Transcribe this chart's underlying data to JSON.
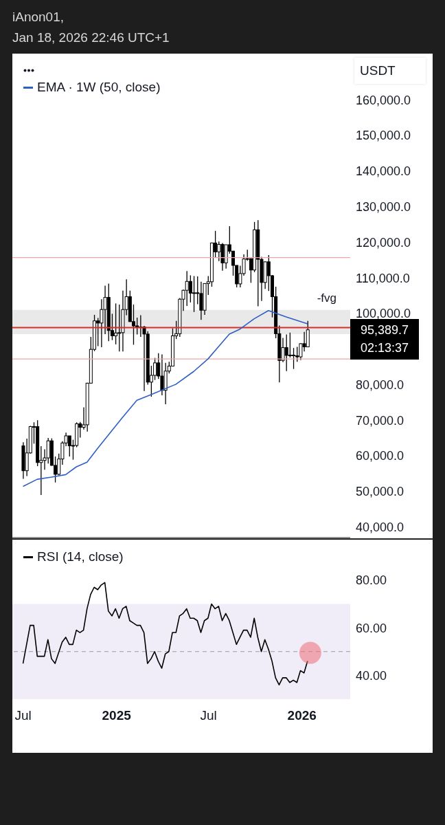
{
  "chart_data": [
    {
      "type": "candlestick",
      "title": "iAnon01,",
      "subtitle": "Jan 18, 2026 22:46 UTC+1",
      "ylabel": "USDT",
      "color": "#000000",
      "x": [
        "2024-07-01",
        "2024-07-08",
        "2024-07-15",
        "2024-07-22",
        "2024-07-29",
        "2024-08-05",
        "2024-08-12",
        "2024-08-19",
        "2024-08-26",
        "2024-09-02",
        "2024-09-09",
        "2024-09-16",
        "2024-09-23",
        "2024-09-30",
        "2024-10-07",
        "2024-10-14",
        "2024-10-21",
        "2024-10-28",
        "2024-11-04",
        "2024-11-11",
        "2024-11-18",
        "2024-11-25",
        "2024-12-02",
        "2024-12-09",
        "2024-12-16",
        "2024-12-23",
        "2024-12-30",
        "2025-01-06",
        "2025-01-13",
        "2025-01-20",
        "2025-01-27",
        "2025-02-03",
        "2025-02-10",
        "2025-02-17",
        "2025-02-24",
        "2025-03-03",
        "2025-03-10",
        "2025-03-17",
        "2025-03-24",
        "2025-03-31",
        "2025-04-07",
        "2025-04-14",
        "2025-04-21",
        "2025-04-28",
        "2025-05-05",
        "2025-05-12",
        "2025-05-19",
        "2025-05-26",
        "2025-06-02",
        "2025-06-09",
        "2025-06-16",
        "2025-06-23",
        "2025-06-30",
        "2025-07-07",
        "2025-07-14",
        "2025-07-21",
        "2025-07-28",
        "2025-08-04",
        "2025-08-11",
        "2025-08-18",
        "2025-08-25",
        "2025-09-01",
        "2025-09-08",
        "2025-09-15",
        "2025-09-22",
        "2025-09-29",
        "2025-10-06",
        "2025-10-13",
        "2025-10-20",
        "2025-10-27",
        "2025-11-03",
        "2025-11-10",
        "2025-11-17",
        "2025-11-24",
        "2025-12-01",
        "2025-12-08",
        "2025-12-15",
        "2025-12-22",
        "2025-12-29",
        "2026-01-05",
        "2026-01-12"
      ],
      "ohlc": [
        [
          62800,
          63800,
          53500,
          55800
        ],
        [
          55800,
          64800,
          54300,
          60800
        ],
        [
          60800,
          68400,
          60600,
          68200
        ],
        [
          68200,
          69400,
          63400,
          68200
        ],
        [
          68200,
          70000,
          57100,
          58100
        ],
        [
          58100,
          62700,
          49000,
          58700
        ],
        [
          58700,
          61800,
          56100,
          59400
        ],
        [
          59400,
          65000,
          57800,
          64200
        ],
        [
          64200,
          64900,
          57200,
          57300
        ],
        [
          57300,
          59800,
          52500,
          54800
        ],
        [
          54800,
          60600,
          54600,
          59100
        ],
        [
          59100,
          64100,
          57500,
          63600
        ],
        [
          63600,
          66500,
          62700,
          65600
        ],
        [
          65600,
          65600,
          59800,
          62800
        ],
        [
          62800,
          64500,
          58900,
          62900
        ],
        [
          62900,
          69400,
          62400,
          69000
        ],
        [
          69000,
          69500,
          65100,
          68000
        ],
        [
          68000,
          73600,
          67400,
          68700
        ],
        [
          68700,
          80500,
          66800,
          80400
        ],
        [
          80400,
          93400,
          80300,
          89900
        ],
        [
          89900,
          99600,
          89400,
          97900
        ],
        [
          97900,
          98700,
          90800,
          97300
        ],
        [
          97300,
          104000,
          90500,
          101100
        ],
        [
          101100,
          107800,
          94200,
          104500
        ],
        [
          104500,
          108400,
          92200,
          95200
        ],
        [
          95200,
          99900,
          92500,
          93700
        ],
        [
          93700,
          102800,
          91300,
          94500
        ],
        [
          94500,
          102500,
          89300,
          94600
        ],
        [
          94600,
          106400,
          89300,
          101100
        ],
        [
          101100,
          109600,
          99500,
          104700
        ],
        [
          104700,
          106400,
          97600,
          97700
        ],
        [
          97700,
          102500,
          91200,
          96500
        ],
        [
          96500,
          98800,
          94100,
          96100
        ],
        [
          96100,
          99500,
          93400,
          96200
        ],
        [
          96200,
          96500,
          78200,
          94200
        ],
        [
          94200,
          95000,
          80000,
          80700
        ],
        [
          80700,
          85300,
          76600,
          82600
        ],
        [
          82600,
          87500,
          81300,
          86100
        ],
        [
          86100,
          88800,
          81600,
          82400
        ],
        [
          82400,
          88500,
          77000,
          78400
        ],
        [
          78400,
          86100,
          74500,
          83800
        ],
        [
          83800,
          86400,
          83100,
          85200
        ],
        [
          85200,
          95800,
          85100,
          93700
        ],
        [
          93700,
          97900,
          92800,
          94300
        ],
        [
          94300,
          104300,
          93400,
          104000
        ],
        [
          104000,
          106700,
          100700,
          106500
        ],
        [
          106500,
          111900,
          102100,
          109000
        ],
        [
          109000,
          110700,
          103100,
          105700
        ],
        [
          105700,
          110500,
          100400,
          105800
        ],
        [
          105800,
          110400,
          102600,
          105600
        ],
        [
          105600,
          108900,
          98200,
          100900
        ],
        [
          100900,
          108500,
          99600,
          108400
        ],
        [
          108400,
          110500,
          105200,
          108900
        ],
        [
          108900,
          119900,
          107500,
          119800
        ],
        [
          119800,
          123200,
          115700,
          117300
        ],
        [
          117300,
          120200,
          114700,
          119400
        ],
        [
          119400,
          119800,
          112000,
          114200
        ],
        [
          114200,
          119300,
          112600,
          119300
        ],
        [
          119300,
          124500,
          116800,
          117500
        ],
        [
          117500,
          117600,
          110600,
          113500
        ],
        [
          113500,
          113500,
          107300,
          108300
        ],
        [
          108300,
          113400,
          107300,
          111200
        ],
        [
          111200,
          116600,
          110600,
          115300
        ],
        [
          115300,
          117900,
          114800,
          115400
        ],
        [
          115400,
          115500,
          108600,
          112200
        ],
        [
          112200,
          125700,
          111600,
          123500
        ],
        [
          123500,
          126200,
          102000,
          115200
        ],
        [
          115200,
          115900,
          103500,
          108700
        ],
        [
          108700,
          114600,
          106900,
          114500
        ],
        [
          114500,
          116400,
          106300,
          110600
        ],
        [
          110600,
          110800,
          98900,
          104700
        ],
        [
          104700,
          107500,
          93000,
          94300
        ],
        [
          94300,
          96600,
          80600,
          86800
        ],
        [
          86800,
          93100,
          86300,
          90400
        ],
        [
          90400,
          94100,
          83800,
          88200
        ],
        [
          88200,
          94600,
          87600,
          88300
        ],
        [
          88300,
          90300,
          84400,
          88100
        ],
        [
          88100,
          90600,
          86400,
          87800
        ],
        [
          87800,
          91600,
          86900,
          91500
        ],
        [
          91500,
          94800,
          89300,
          90600
        ],
        [
          90600,
          97900,
          90600,
          95389.7
        ]
      ],
      "series": [
        {
          "type": "line",
          "name": "EMA · 1W (50, close)",
          "color": "#2f5fc4",
          "x": [
            "2024-07-01",
            "2024-07-29",
            "2024-08-26",
            "2024-09-23",
            "2024-10-14",
            "2024-11-04",
            "2024-11-25",
            "2024-12-23",
            "2025-01-13",
            "2025-02-10",
            "2025-03-10",
            "2025-04-28",
            "2025-06-02",
            "2025-06-30",
            "2025-08-11",
            "2025-09-01",
            "2025-09-29",
            "2025-10-27",
            "2025-12-01",
            "2026-01-12"
          ],
          "values": [
            51400,
            53400,
            54000,
            54700,
            56900,
            58200,
            62100,
            67100,
            70800,
            75600,
            77200,
            80100,
            83700,
            87200,
            94200,
            95600,
            98500,
            100800,
            99000,
            97100
          ]
        }
      ],
      "xlim": [
        "2024-06-10",
        "2026-04-06"
      ],
      "ylim": [
        37000,
        173000
      ],
      "yticks": [
        {
          "value": 40000,
          "label": "40,000.0"
        },
        {
          "value": 50000,
          "label": "50,000.0"
        },
        {
          "value": 60000,
          "label": "60,000.0"
        },
        {
          "value": 70000,
          "label": "70,000.0"
        },
        {
          "value": 80000,
          "label": "80,000.0"
        },
        {
          "value": 100000,
          "label": "100,000.0"
        },
        {
          "value": 110000,
          "label": "110,000.0"
        },
        {
          "value": 120000,
          "label": "120,000.0"
        },
        {
          "value": 130000,
          "label": "130,000.0"
        },
        {
          "value": 140000,
          "label": "140,000.0"
        },
        {
          "value": 150000,
          "label": "150,000.0"
        },
        {
          "value": 160000,
          "label": "160,000.0"
        }
      ],
      "ref_lines": [
        {
          "axis": "y",
          "value": 96000,
          "color": "#d32f2f"
        },
        {
          "axis": "y",
          "value": 115700,
          "color": "#f2a5a5"
        },
        {
          "axis": "y",
          "value": 87200,
          "color": "#f2a5a5"
        }
      ],
      "bands": [
        {
          "axis": "y",
          "from": 94200,
          "to": 101000,
          "label": "-fvg",
          "color": "#e3e3e3"
        }
      ],
      "annotations": [
        "95,389.7",
        "02:13:37"
      ],
      "tick_labels": "y"
    },
    {
      "type": "line",
      "series": [
        {
          "name": "RSI (14, close)",
          "color": "#000000",
          "x": [
            "2024-07-01",
            "2024-07-15",
            "2024-07-22",
            "2024-07-29",
            "2024-08-05",
            "2024-08-12",
            "2024-08-19",
            "2024-08-26",
            "2024-09-02",
            "2024-09-16",
            "2024-09-23",
            "2024-09-30",
            "2024-10-07",
            "2024-10-14",
            "2024-10-21",
            "2024-10-28",
            "2024-11-04",
            "2024-11-11",
            "2024-11-18",
            "2024-11-25",
            "2024-12-02",
            "2024-12-09",
            "2024-12-16",
            "2024-12-23",
            "2024-12-30",
            "2025-01-06",
            "2025-01-13",
            "2025-01-20",
            "2025-01-27",
            "2025-02-03",
            "2025-02-10",
            "2025-02-17",
            "2025-02-24",
            "2025-03-03",
            "2025-03-10",
            "2025-03-17",
            "2025-03-24",
            "2025-03-31",
            "2025-04-07",
            "2025-04-14",
            "2025-04-21",
            "2025-04-28",
            "2025-05-05",
            "2025-05-12",
            "2025-05-19",
            "2025-05-26",
            "2025-06-02",
            "2025-06-09",
            "2025-06-16",
            "2025-06-23",
            "2025-06-30",
            "2025-07-07",
            "2025-07-14",
            "2025-07-21",
            "2025-07-28",
            "2025-08-04",
            "2025-08-11",
            "2025-08-18",
            "2025-08-25",
            "2025-09-01",
            "2025-09-08",
            "2025-09-15",
            "2025-09-22",
            "2025-09-29",
            "2025-10-06",
            "2025-10-13",
            "2025-10-20",
            "2025-10-27",
            "2025-11-03",
            "2025-11-10",
            "2025-11-17",
            "2025-11-24",
            "2025-12-01",
            "2025-12-08",
            "2025-12-15",
            "2025-12-22",
            "2025-12-29",
            "2026-01-05",
            "2026-01-12"
          ],
          "values": [
            45,
            61,
            61,
            48,
            48,
            48,
            55,
            47,
            45,
            54,
            56,
            53,
            53,
            59,
            58,
            59,
            68,
            74,
            77,
            76,
            78,
            79,
            67,
            65,
            68,
            64,
            68,
            69,
            63,
            62,
            61,
            61,
            58,
            45,
            47,
            50,
            46,
            43,
            49,
            50,
            58,
            58,
            65,
            66,
            68,
            64,
            64,
            63,
            58,
            63,
            64,
            70,
            68,
            69,
            63,
            66,
            63,
            58,
            53,
            56,
            59,
            59,
            56,
            64,
            56,
            50,
            55,
            51,
            46,
            39,
            36,
            39,
            39,
            37,
            38,
            37,
            42,
            41,
            46
          ]
        }
      ],
      "xlim": [
        "2024-06-10",
        "2026-04-06"
      ],
      "xticks": [
        {
          "value": "2024-07-01",
          "label": "Jul"
        },
        {
          "value": "2025-01-01",
          "label": "2025"
        },
        {
          "value": "2025-07-01",
          "label": "Jul"
        },
        {
          "value": "2026-01-01",
          "label": "2026"
        }
      ],
      "ylim": [
        30,
        97
      ],
      "yticks": [
        {
          "value": 40,
          "label": "40.00"
        },
        {
          "value": 60,
          "label": "60.00"
        },
        {
          "value": 80,
          "label": "80.00"
        }
      ],
      "bands": [
        {
          "axis": "y",
          "from": 30,
          "to": 70,
          "color": "#ece9f6"
        }
      ],
      "ref_lines": [
        {
          "axis": "y",
          "value": 50,
          "color": "#9a98a8",
          "line_style": "dashed"
        }
      ]
    }
  ]
}
